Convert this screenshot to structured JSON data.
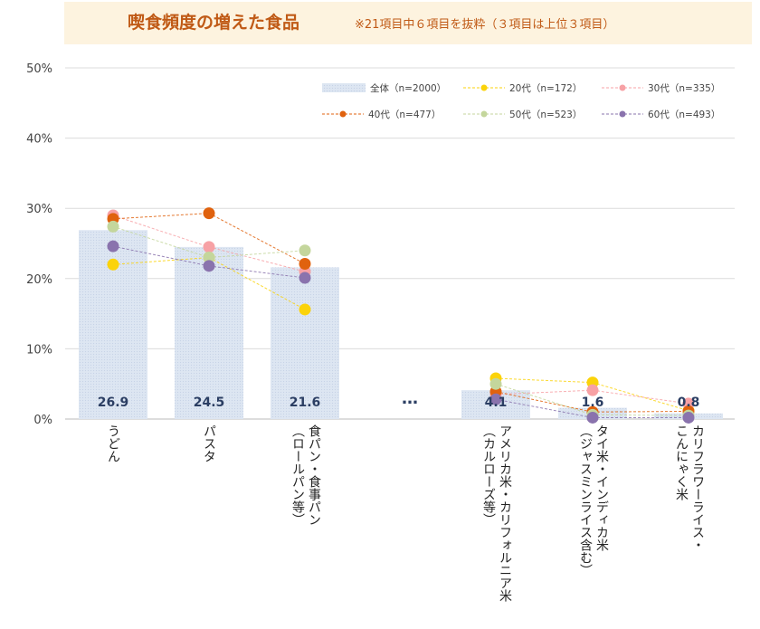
{
  "title": "喫食頻度の増えた食品",
  "subtitle": "※21項目中６項目を抜粋（３項目は上位３項目）",
  "ellipsis": "…",
  "colors": {
    "bar": "#dde6f2",
    "20代": "#fbd30a",
    "30代": "#f7a1a5",
    "40代": "#e0620e",
    "50代": "#c4d69c",
    "60代": "#8a73ad"
  },
  "chart_data": {
    "type": "bar",
    "ylim": [
      0,
      50
    ],
    "yticks": [
      "0%",
      "10%",
      "20%",
      "30%",
      "40%",
      "50%"
    ],
    "grid": true,
    "legend_position": "top-right",
    "categories": [
      [
        "うどん"
      ],
      [
        "パスタ"
      ],
      [
        "食パン・食事パン",
        "（ロールパン等）"
      ],
      [
        "アメリカ米・カリフォルニア米",
        "（カルローズ等）"
      ],
      [
        "タイ米・インディカ米",
        "（ジャスミンライス含む）"
      ],
      [
        "カリフラワーライス・",
        "こんにゃく米"
      ]
    ],
    "bar_series": {
      "name": "全体（n=2000）",
      "values": [
        26.9,
        24.5,
        21.6,
        4.1,
        1.6,
        0.8
      ],
      "labels": [
        "26.9",
        "24.5",
        "21.6",
        "4.1",
        "1.6",
        "0.8"
      ]
    },
    "series": [
      {
        "key": "20代",
        "name": "20代（n=172）",
        "values": [
          22.0,
          23.0,
          15.6,
          5.8,
          5.2,
          1.2
        ]
      },
      {
        "key": "30代",
        "name": "30代（n=335）",
        "values": [
          29.0,
          24.5,
          21.0,
          3.5,
          4.1,
          2.2
        ]
      },
      {
        "key": "40代",
        "name": "40代（n=477）",
        "values": [
          28.5,
          29.3,
          22.1,
          3.9,
          1.0,
          1.1
        ]
      },
      {
        "key": "50代",
        "name": "50代（n=523）",
        "values": [
          27.4,
          23.0,
          24.0,
          5.0,
          0.6,
          0.5
        ]
      },
      {
        "key": "60代",
        "name": "60代（n=493）",
        "values": [
          24.6,
          21.8,
          20.1,
          2.8,
          0.2,
          0.2
        ]
      }
    ]
  }
}
